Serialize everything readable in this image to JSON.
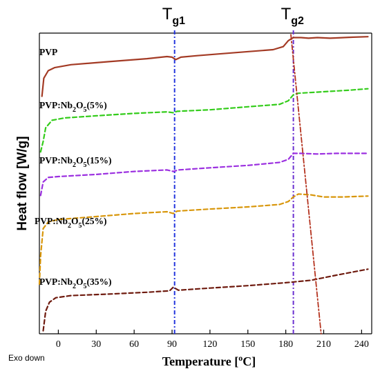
{
  "chart_data": {
    "type": "line",
    "title": "",
    "xlabel": "Temperature [°C]",
    "xlabel_main": "Temperature [",
    "xlabel_sup": "o",
    "xlabel_tail": "C]",
    "ylabel": "Heat flow [W/g]",
    "corner_note": "Exo down",
    "xlim": [
      -15,
      248
    ],
    "ylim": [
      0,
      10
    ],
    "xticks": [
      0,
      30,
      60,
      90,
      120,
      150,
      180,
      210,
      240
    ],
    "y_ticks_shown": false,
    "grid": false,
    "markers": [
      {
        "base": "T",
        "sub": "g1",
        "x": 92,
        "color": "#2233dd"
      },
      {
        "base": "T",
        "sub": "g2",
        "x": 186,
        "color": "#6a2fd0"
      }
    ],
    "series": [
      {
        "name": "PVP",
        "label_parts": [
          "PVP"
        ],
        "color": "#a33a24",
        "dash": "solid",
        "points": [
          [
            -13,
            7.9
          ],
          [
            -11.5,
            8.5
          ],
          [
            -8,
            8.75
          ],
          [
            -3,
            8.85
          ],
          [
            10,
            8.95
          ],
          [
            40,
            9.05
          ],
          [
            70,
            9.15
          ],
          [
            86,
            9.22
          ],
          [
            90,
            9.2
          ],
          [
            93,
            9.12
          ],
          [
            97,
            9.2
          ],
          [
            110,
            9.25
          ],
          [
            140,
            9.35
          ],
          [
            170,
            9.45
          ],
          [
            178,
            9.55
          ],
          [
            182,
            9.75
          ],
          [
            186,
            9.85
          ],
          [
            192,
            9.85
          ],
          [
            198,
            9.83
          ],
          [
            205,
            9.85
          ],
          [
            215,
            9.83
          ],
          [
            220,
            9.84
          ],
          [
            230,
            9.86
          ],
          [
            245,
            9.88
          ]
        ]
      },
      {
        "name": "PVP:Nb2O5(5%)",
        "label_parts": [
          "PVP:Nb",
          "2",
          "O",
          "5",
          "(5%)"
        ],
        "color": "#33cc1a",
        "dash": "dashed",
        "points": [
          [
            -14,
            6.05
          ],
          [
            -12,
            6.4
          ],
          [
            -10,
            6.85
          ],
          [
            -5,
            7.1
          ],
          [
            5,
            7.18
          ],
          [
            30,
            7.25
          ],
          [
            60,
            7.33
          ],
          [
            86,
            7.38
          ],
          [
            91,
            7.35
          ],
          [
            94,
            7.4
          ],
          [
            120,
            7.45
          ],
          [
            150,
            7.55
          ],
          [
            175,
            7.63
          ],
          [
            182,
            7.75
          ],
          [
            186,
            7.95
          ],
          [
            190,
            8.0
          ],
          [
            210,
            8.05
          ],
          [
            230,
            8.1
          ],
          [
            245,
            8.15
          ]
        ]
      },
      {
        "name": "PVP:Nb2O5(15%)",
        "label_parts": [
          "PVP:Nb",
          "2",
          "O",
          "5",
          "(15%)"
        ],
        "color": "#9b2fe0",
        "dash": "dashed",
        "points": [
          [
            -14,
            4.6
          ],
          [
            -12,
            5.05
          ],
          [
            -8,
            5.2
          ],
          [
            0,
            5.23
          ],
          [
            30,
            5.3
          ],
          [
            60,
            5.4
          ],
          [
            86,
            5.45
          ],
          [
            91,
            5.4
          ],
          [
            95,
            5.45
          ],
          [
            120,
            5.52
          ],
          [
            150,
            5.6
          ],
          [
            175,
            5.7
          ],
          [
            182,
            5.8
          ],
          [
            186,
            6.0
          ],
          [
            192,
            6.0
          ],
          [
            205,
            5.98
          ],
          [
            220,
            6.0
          ],
          [
            245,
            6.0
          ]
        ]
      },
      {
        "name": "PVP:Nb2O5(25%)",
        "label_parts": [
          "PVP:Nb",
          "2",
          "O",
          "5",
          "(25%)"
        ],
        "color": "#d8960a",
        "dash": "dashed",
        "points": [
          [
            -15,
            1.65
          ],
          [
            -14,
            2.6
          ],
          [
            -12,
            3.5
          ],
          [
            -8,
            3.72
          ],
          [
            0,
            3.8
          ],
          [
            30,
            3.9
          ],
          [
            60,
            4.0
          ],
          [
            86,
            4.06
          ],
          [
            91,
            4.0
          ],
          [
            94,
            4.08
          ],
          [
            120,
            4.15
          ],
          [
            150,
            4.22
          ],
          [
            175,
            4.3
          ],
          [
            182,
            4.4
          ],
          [
            186,
            4.55
          ],
          [
            190,
            4.65
          ],
          [
            200,
            4.62
          ],
          [
            210,
            4.55
          ],
          [
            225,
            4.55
          ],
          [
            245,
            4.58
          ]
        ]
      },
      {
        "name": "PVP:Nb2O5(35%)",
        "label_parts": [
          "PVP:Nb",
          "2",
          "O",
          "5",
          "(35%)"
        ],
        "color": "#6e1a0e",
        "dash": "dashed",
        "points": [
          [
            -12,
            0.1
          ],
          [
            -10,
            0.75
          ],
          [
            -7,
            1.05
          ],
          [
            -2,
            1.2
          ],
          [
            10,
            1.27
          ],
          [
            40,
            1.32
          ],
          [
            70,
            1.38
          ],
          [
            88,
            1.43
          ],
          [
            91,
            1.55
          ],
          [
            95,
            1.45
          ],
          [
            120,
            1.52
          ],
          [
            150,
            1.6
          ],
          [
            180,
            1.7
          ],
          [
            200,
            1.78
          ],
          [
            220,
            1.95
          ],
          [
            245,
            2.15
          ]
        ]
      },
      {
        "name": "",
        "label_parts": [],
        "color": "#b4321e",
        "dash": "dashdot",
        "points": [
          [
            184,
            9.95
          ],
          [
            208,
            0.0
          ]
        ]
      }
    ]
  }
}
